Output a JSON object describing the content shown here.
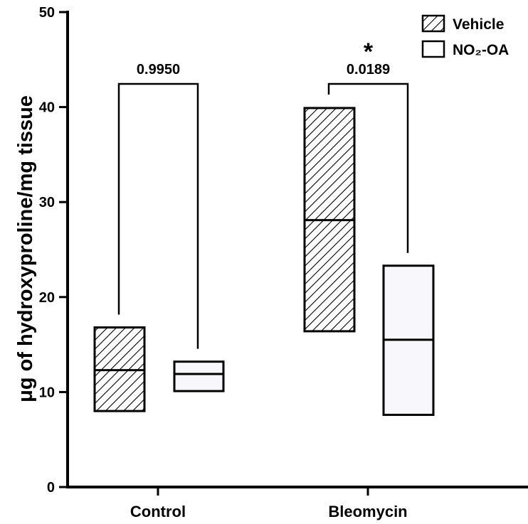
{
  "chart_data": {
    "type": "box",
    "title": "",
    "xlabel": "",
    "ylabel": "μg of hydroxyproline/mg tissue",
    "ylim": [
      0,
      50
    ],
    "yticks": [
      "0",
      "10",
      "20",
      "30",
      "40",
      "50"
    ],
    "categories": [
      "Control",
      "Bleomycin"
    ],
    "legend_position": "top-right",
    "series": [
      {
        "name": "Vehicle",
        "pattern": "hatched",
        "boxes": [
          {
            "category": "Control",
            "min": 8.0,
            "median": 12.3,
            "max": 16.8
          },
          {
            "category": "Bleomycin",
            "min": 16.4,
            "median": 28.1,
            "max": 39.9
          }
        ]
      },
      {
        "name": "NO₂-OA",
        "pattern": "open",
        "boxes": [
          {
            "category": "Control",
            "min": 10.1,
            "median": 11.9,
            "max": 13.2
          },
          {
            "category": "Bleomycin",
            "min": 7.6,
            "median": 15.5,
            "max": 23.3
          }
        ]
      }
    ],
    "comparisons": [
      {
        "category": "Control",
        "p_value": "0.9950",
        "significance": ""
      },
      {
        "category": "Bleomycin",
        "p_value": "0.0189",
        "significance": "*"
      }
    ],
    "colors": {
      "line": "#000000",
      "open_fill": "#f8f8fc",
      "hatch_fill": "#ffffff"
    }
  }
}
